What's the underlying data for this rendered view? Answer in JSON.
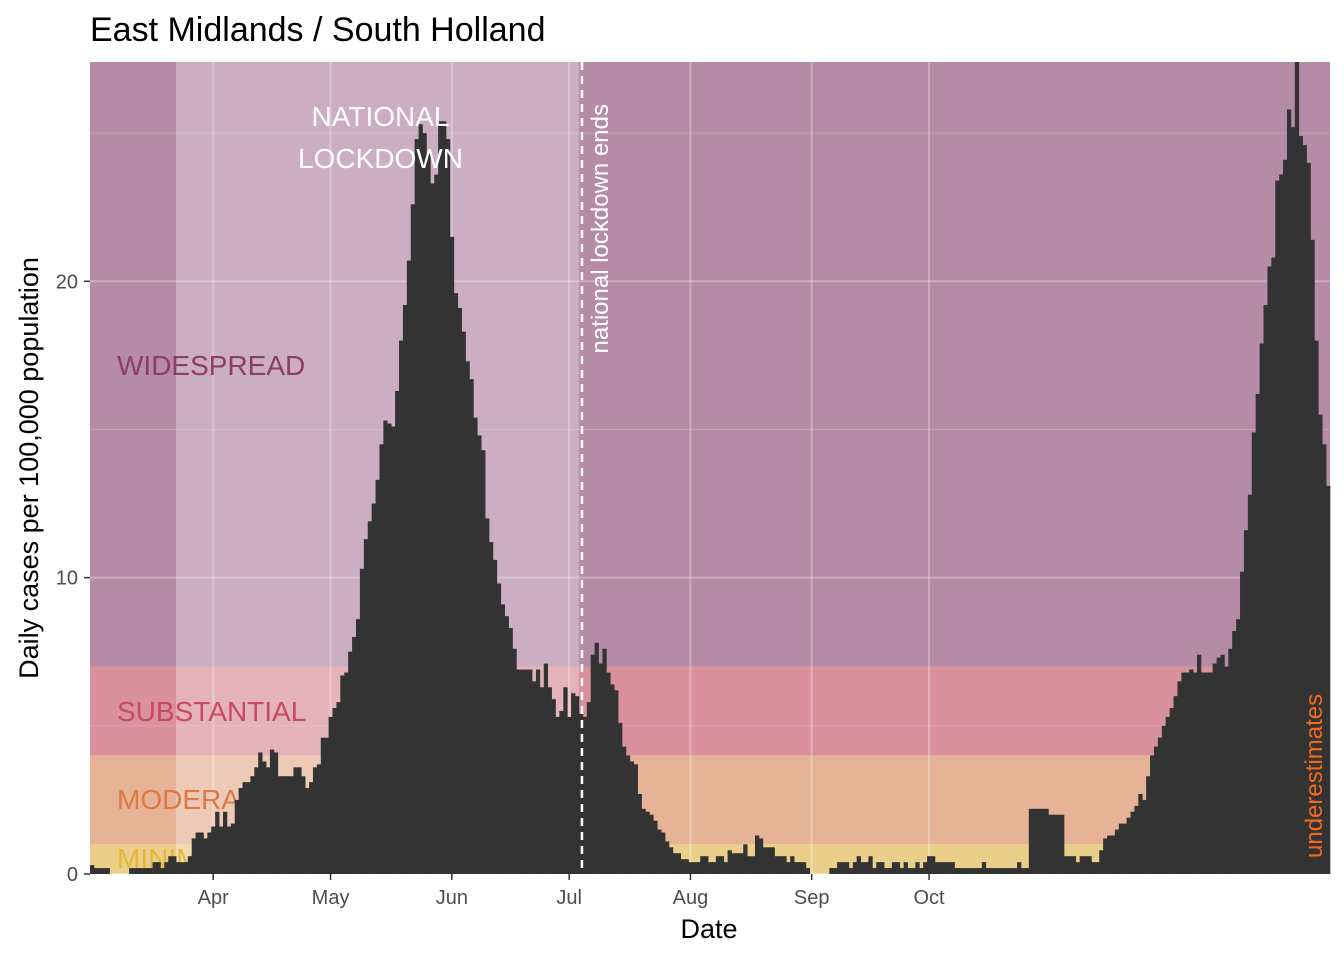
{
  "chart_data": {
    "type": "bar",
    "title": "East Midlands / South Holland",
    "xlabel": "Date",
    "ylabel": "Daily cases per 100,000 population",
    "x_start": "2020-03-01",
    "y_range": [
      0,
      27.4
    ],
    "y_ticks": [
      0,
      10,
      20
    ],
    "x_ticks": [
      {
        "date": "2020-04-01",
        "label": "Apr"
      },
      {
        "date": "2020-05-01",
        "label": "May"
      },
      {
        "date": "2020-06-01",
        "label": "Jun"
      },
      {
        "date": "2020-07-01",
        "label": "Jul"
      },
      {
        "date": "2020-08-01",
        "label": "Aug"
      },
      {
        "date": "2020-09-01",
        "label": "Sep"
      },
      {
        "date": "2020-10-01",
        "label": "Oct"
      }
    ],
    "grid": true,
    "bands": [
      {
        "label": "MINIMAL",
        "from": 0,
        "to": 1,
        "color": "#e9cf8a",
        "text_color": "#e8b43a"
      },
      {
        "label": "MODERATE",
        "from": 1,
        "to": 4,
        "color": "#e6b396",
        "text_color": "#e07845"
      },
      {
        "label": "SUBSTANTIAL",
        "from": 4,
        "to": 7,
        "color": "#d9919b",
        "text_color": "#c94a5e"
      },
      {
        "label": "WIDESPREAD",
        "from": 7,
        "to": 27.4,
        "color": "#b58ba7",
        "text_color": "#8b3d6c"
      }
    ],
    "lockdown_period": {
      "start": "2020-03-23",
      "end": "2020-07-04",
      "label_lines": [
        "NATIONAL",
        "LOCKDOWN"
      ]
    },
    "annotations": [
      {
        "date": "2020-07-04",
        "label": "national lockdown ends"
      },
      {
        "label": "underestimates",
        "color": "#f26b1d"
      }
    ],
    "values": [
      0.3,
      0.2,
      0.2,
      0.2,
      0.2,
      0,
      0,
      0,
      0,
      0,
      0.2,
      0.2,
      0.2,
      0.2,
      0.2,
      0.2,
      0.4,
      0.4,
      0.2,
      0.4,
      0.6,
      0.6,
      0.4,
      0.4,
      0.4,
      0.6,
      1.2,
      1.4,
      1.4,
      1.2,
      1.4,
      1.6,
      2.1,
      1.6,
      2.1,
      1.6,
      1.7,
      2.5,
      2.9,
      3.1,
      3.1,
      3.3,
      3.6,
      4.1,
      3.8,
      3.6,
      4.2,
      4.1,
      3.3,
      3.3,
      3.3,
      3.3,
      3.6,
      3.6,
      3.3,
      2.9,
      3.1,
      3.6,
      3.7,
      4.6,
      4.6,
      5.3,
      5.6,
      5.8,
      6.7,
      6.8,
      7.5,
      8,
      8.6,
      10.3,
      11.3,
      11.9,
      12.5,
      13.3,
      14.5,
      15.3,
      15.2,
      15.1,
      16.3,
      18,
      19.2,
      20.7,
      22.6,
      24.8,
      25.3,
      25,
      24.3,
      23.3,
      23.6,
      25.4,
      25.4,
      24.8,
      21.5,
      19.6,
      19.1,
      18.3,
      17.3,
      16.7,
      15.4,
      14.8,
      14.3,
      12,
      11.2,
      10.6,
      9.8,
      9.1,
      8.7,
      8.3,
      7.6,
      6.9,
      6.9,
      6.9,
      6.9,
      6.5,
      6.9,
      6.3,
      7.1,
      6.3,
      5.9,
      5.3,
      5.5,
      6.3,
      5.3,
      6.1,
      6,
      5.4,
      5.3,
      5.8,
      7.4,
      7.8,
      7.1,
      7.6,
      6.8,
      6.4,
      6.2,
      5.1,
      4.3,
      4,
      3.8,
      3.7,
      2.7,
      2.2,
      2.1,
      2,
      1.8,
      1.5,
      1.4,
      1.1,
      0.9,
      0.7,
      0.7,
      0.5,
      0.5,
      0.4,
      0.4,
      0.4,
      0.6,
      0.6,
      0.4,
      0.4,
      0.6,
      0.6,
      0.4,
      0.8,
      0.7,
      0.7,
      0.7,
      1,
      0.6,
      0.6,
      1.3,
      1.2,
      0.9,
      0.9,
      0.9,
      0.6,
      0.6,
      0.6,
      0.4,
      0.6,
      0.4,
      0.4,
      0.4,
      0.2,
      0,
      0,
      0,
      0,
      0,
      0.2,
      0.2,
      0.4,
      0.4,
      0.4,
      0.2,
      0.4,
      0.6,
      0.4,
      0.4,
      0.6,
      0.2,
      0.4,
      0.4,
      0.2,
      0.2,
      0.4,
      0.4,
      0.2,
      0.4,
      0.2,
      0.2,
      0.4,
      0.2,
      0.4,
      0.6,
      0.6,
      0.4,
      0.4,
      0.4,
      0.4,
      0.4,
      0.2,
      0.2,
      0.2,
      0.2,
      0.2,
      0.2,
      0.2,
      0.4,
      0.2,
      0.2,
      0.2,
      0.2,
      0.2,
      0.2,
      0.2,
      0.2,
      0.4,
      0.2,
      0.2,
      2.2,
      2.2,
      2.2,
      2.2,
      2.2,
      2,
      2,
      2,
      2,
      0.6,
      0.6,
      0.6,
      0.4,
      0.6,
      0.6,
      0.6,
      0.4,
      0.4,
      0.8,
      1.2,
      1.3,
      1.3,
      1.5,
      1.7,
      1.7,
      1.9,
      2.1,
      2.3,
      2.7,
      2.5,
      3.3,
      4,
      4.3,
      4.6,
      5,
      5.3,
      5.6,
      6,
      6.5,
      6.8,
      6.8,
      6.9,
      6.8,
      7.4,
      6.8,
      6.8,
      6.8,
      7.1,
      7.3,
      7.4,
      7,
      7.6,
      8.2,
      8.6,
      10.2,
      11.6,
      12.8,
      14.9,
      16.2,
      17.9,
      19.2,
      20.5,
      20.8,
      23.4,
      23.6,
      24.1,
      25.8,
      25.2,
      27.4,
      24.9,
      24.6,
      24.0,
      21.4,
      18,
      15.5,
      14.5,
      13.1
    ]
  }
}
